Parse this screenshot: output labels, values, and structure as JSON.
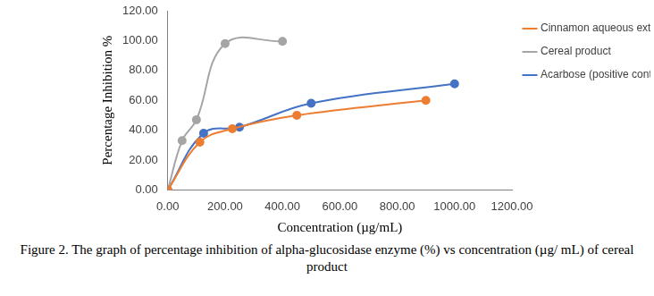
{
  "chart_data": {
    "type": "line",
    "caption": "Figure 2. The graph of percentage inhibition of alpha-glucosidase enzyme (%) vs concentration (µg/ mL) of cereal product",
    "x_label": "Concentration (µg/mL)",
    "y_label": "Percentage Inhibition %",
    "series": [
      {
        "name": "Cinnamon aqueous extract",
        "color": "#ed7d31",
        "marker": "circle",
        "line_style": "solid",
        "x": [
          0,
          112,
          225,
          450,
          900
        ],
        "values": [
          0,
          32,
          41,
          50,
          60
        ]
      },
      {
        "name": "Cereal product",
        "color": "#a5a5a5",
        "marker": "circle",
        "line_style": "solid",
        "x": [
          0,
          50,
          100,
          200,
          400
        ],
        "values": [
          0,
          33,
          47,
          98,
          99.5
        ]
      },
      {
        "name": "Acarbose (positive control)",
        "color": "#4472c4",
        "marker": "circle",
        "line_style": "solid",
        "x": [
          0,
          125,
          250,
          500,
          1000
        ],
        "values": [
          0,
          38,
          42,
          58,
          71
        ]
      }
    ],
    "xlim": [
      0,
      1200
    ],
    "xticks": [
      {
        "value": 0,
        "label": "0.00"
      },
      {
        "value": 200,
        "label": "200.00"
      },
      {
        "value": 400,
        "label": "400.00"
      },
      {
        "value": 600,
        "label": "600.00"
      },
      {
        "value": 800,
        "label": "800.00"
      },
      {
        "value": 1000,
        "label": "1000.00"
      },
      {
        "value": 1200,
        "label": "1200.00"
      }
    ],
    "ylim": [
      0,
      120
    ],
    "yticks": [
      {
        "value": 0,
        "label": "0.00"
      },
      {
        "value": 20,
        "label": "20.00"
      },
      {
        "value": 40,
        "label": "40.00"
      },
      {
        "value": 60,
        "label": "60.00"
      },
      {
        "value": 80,
        "label": "80.00"
      },
      {
        "value": 100,
        "label": "100.00"
      },
      {
        "value": 120,
        "label": "120.00"
      }
    ],
    "grid": false,
    "legend": "right"
  }
}
